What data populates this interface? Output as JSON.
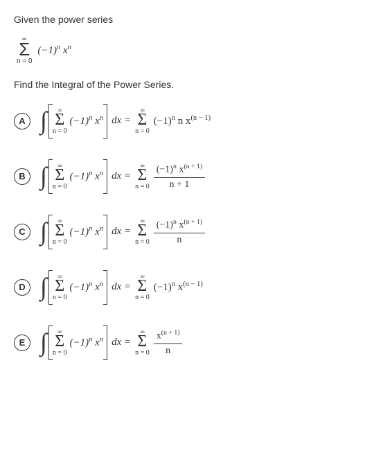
{
  "prompt1": "Given the power series",
  "series": {
    "top": "∞",
    "bot": "n = 0",
    "term": "(−1)<sup>n</sup> x<sup>n</sup>"
  },
  "prompt2": "Find the Integral of the Power Series.",
  "lhs": {
    "top": "∞",
    "bot": "n = 0",
    "term": "(−1)<sup>n</sup> x<sup>n</sup>",
    "dx": "dx ="
  },
  "options": [
    {
      "letter": "A",
      "rhs_top": "∞",
      "rhs_bot": "n = 0",
      "rhs_type": "plain",
      "rhs_plain": "(−1)<sup>n</sup> n x<sup>(n − 1)</sup>"
    },
    {
      "letter": "B",
      "rhs_top": "∞",
      "rhs_bot": "n = 0",
      "rhs_type": "frac",
      "rhs_num": "(−1)<sup>n</sup> x<sup>(n + 1)</sup>",
      "rhs_den": "n + 1"
    },
    {
      "letter": "C",
      "rhs_top": "∞",
      "rhs_bot": "n = 0",
      "rhs_type": "frac",
      "rhs_num": "(−1)<sup>n</sup> x<sup>(n + 1)</sup>",
      "rhs_den": "n"
    },
    {
      "letter": "D",
      "rhs_top": "∞",
      "rhs_bot": "n = 0",
      "rhs_type": "plain",
      "rhs_plain": "(−1)<sup>n</sup> x<sup>(n − 1)</sup>"
    },
    {
      "letter": "E",
      "rhs_top": "∞",
      "rhs_bot": "n = 0",
      "rhs_type": "frac",
      "rhs_num": "x<sup>(n + 1)</sup>",
      "rhs_den": "n"
    }
  ],
  "colors": {
    "text": "#333333",
    "bg": "#ffffff",
    "border": "#333333"
  },
  "fonts": {
    "body": "Arial, sans-serif",
    "math": "'Times New Roman', serif",
    "body_size_pt": 11,
    "math_size_pt": 12
  }
}
